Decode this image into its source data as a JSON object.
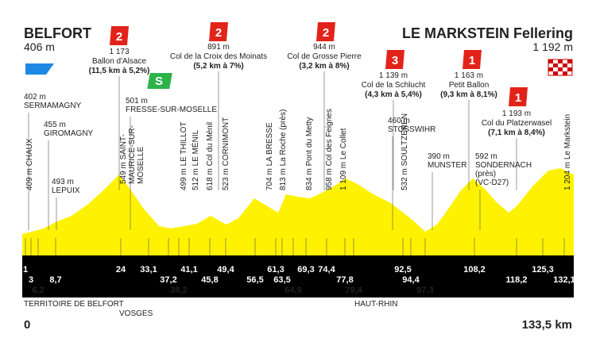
{
  "start": {
    "name": "BELFORT",
    "altitude": "406 m"
  },
  "finish": {
    "name": "LE MARKSTEIN Fellering",
    "altitude": "1 192 m"
  },
  "distance": {
    "start": "0",
    "end": "133,5 km"
  },
  "climbs": [
    {
      "category": "2",
      "altitude": "1 173",
      "name": "Ballon d'Alsace",
      "detail": "(11,5 km à 5,2%)"
    },
    {
      "category": "2",
      "altitude": "891 m",
      "name": "Col de la Croix des Moinats",
      "detail": "(5,2 km à 7%)"
    },
    {
      "category": "2",
      "altitude": "944 m",
      "name": "Col de Grosse Pierre",
      "detail": "(3,2 km à 8%)"
    },
    {
      "category": "3",
      "altitude": "1 139 m",
      "name": "Col de la Schlucht",
      "detail": "(4,3 km à 5,4%)"
    },
    {
      "category": "1",
      "altitude": "1 163 m",
      "name": "Petit Ballon",
      "detail": "(9,3 km à 8,1%)"
    },
    {
      "category": "1",
      "altitude": "1 193 m",
      "name": "Col du Platzerwasel",
      "detail": "(7,1 km à 8,4%)"
    }
  ],
  "sprint": "S",
  "places": [
    {
      "lines": [
        "402 m",
        "SERMAMAGNY"
      ]
    },
    {
      "lines": [
        "455 m",
        "GIROMAGNY"
      ]
    },
    {
      "lines": [
        "493 m",
        "LEPUIX"
      ]
    },
    {
      "lines": [
        "501 m",
        "FRESSE-SUR-MOSELLE"
      ]
    },
    {
      "lines": [
        "460 m",
        "STOSSWIHR"
      ]
    },
    {
      "lines": [
        "390 m",
        "MUNSTER"
      ]
    },
    {
      "lines": [
        "592 m",
        "SONDERNACH",
        "(près)",
        "(VC-D27)"
      ]
    }
  ],
  "vertical_places": [
    {
      "lines": [
        "409 m CHAUX"
      ]
    },
    {
      "lines": [
        "549 m SAINT-",
        "MAURICE-SUR-",
        "MOSELLE"
      ]
    },
    {
      "lines": [
        "499 m LE THILLOT"
      ]
    },
    {
      "lines": [
        "512 m LE MÉNIL"
      ]
    },
    {
      "lines": [
        "618 m Col du Ménil"
      ]
    },
    {
      "lines": [
        "523 m CORNIMONT"
      ]
    },
    {
      "lines": [
        "704 m LA BRESSE"
      ]
    },
    {
      "lines": [
        "813 m La Roche (près)"
      ]
    },
    {
      "lines": [
        "834 m Pont du Metty"
      ]
    },
    {
      "lines": [
        "958 m Col des Feignes"
      ]
    },
    {
      "lines": [
        "1 109 m Le Collet"
      ]
    },
    {
      "lines": [
        "532 m SOULTZEREN"
      ]
    },
    {
      "lines": [
        "1 204 m Le Markstein"
      ]
    }
  ],
  "km_markers": [
    "1",
    "3",
    "6,2",
    "8,7",
    "24",
    "33,1",
    "37,2",
    "38,2",
    "41,1",
    "45,8",
    "49,4",
    "56,5",
    "61,3",
    "63,5",
    "64,9",
    "69,3",
    "74,4",
    "77,8",
    "79,4",
    "92,5",
    "94,4",
    "97,3",
    "108,2",
    "118,2",
    "125,3",
    "132,1"
  ],
  "regions": [
    "TERRITOIRE DE BELFORT",
    "VOSGES",
    "HAUT-RHIN"
  ]
}
